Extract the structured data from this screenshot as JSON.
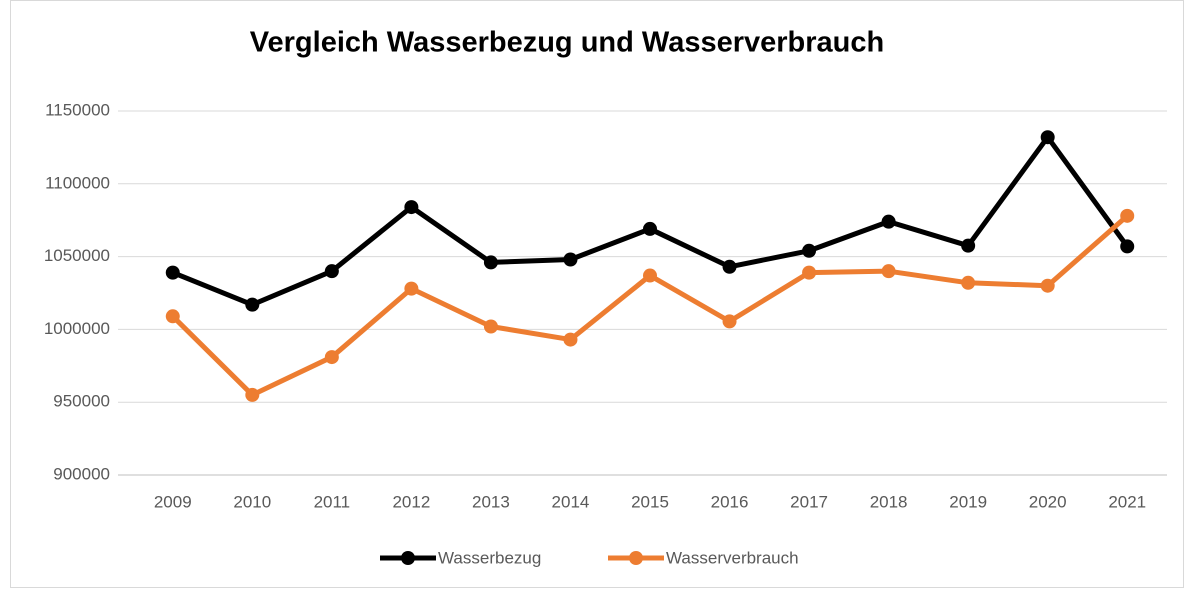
{
  "chart_data": {
    "type": "line",
    "title": "Vergleich Wasserbezug und Wasserverbrauch",
    "categories": [
      "2009",
      "2010",
      "2011",
      "2012",
      "2013",
      "2014",
      "2015",
      "2016",
      "2017",
      "2018",
      "2019",
      "2020",
      "2021"
    ],
    "series": [
      {
        "name": "Wasserbezug",
        "color": "#000000",
        "values": [
          1039000,
          1017000,
          1040000,
          1084000,
          1046000,
          1048000,
          1069000,
          1043000,
          1054000,
          1074000,
          1057500,
          1132000,
          1057000
        ]
      },
      {
        "name": "Wasserverbrauch",
        "color": "#ed7d31",
        "values": [
          1009000,
          955000,
          981000,
          1028000,
          1002000,
          993000,
          1037000,
          1005500,
          1039000,
          1040000,
          1032000,
          1030000,
          1078000
        ]
      }
    ],
    "ylim": [
      900000,
      1150000
    ],
    "yticks": [
      900000,
      950000,
      1000000,
      1050000,
      1100000,
      1150000
    ],
    "grid": true,
    "legend": "bottom"
  }
}
